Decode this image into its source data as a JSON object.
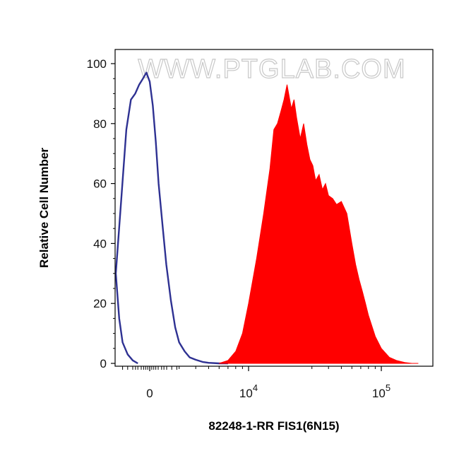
{
  "chart_data": {
    "type": "area",
    "title": "",
    "xlabel": "82248-1-RR FIS1(6N15)",
    "ylabel": "Relative Cell Number",
    "watermark": "WWW.PTGLAB.COM",
    "x_scale": "biexponential",
    "x_ticks": [
      {
        "value": 0,
        "label": "0",
        "sup": ""
      },
      {
        "value": 10000,
        "label": "10",
        "sup": "4"
      },
      {
        "value": 100000,
        "label": "10",
        "sup": "5"
      }
    ],
    "y_ticks": [
      0,
      20,
      40,
      60,
      80,
      100
    ],
    "ylim": [
      0,
      100
    ],
    "series": [
      {
        "style": "outline",
        "color": "#2e3192",
        "x": [
          350,
          500,
          650,
          800,
          900,
          1000,
          1100,
          1200,
          1300,
          1400,
          1500,
          1600,
          1700,
          1800,
          1900,
          2000,
          2100,
          2250,
          2400,
          2600,
          2800,
          3000,
          3300,
          3600,
          4000,
          4500,
          5000,
          6000,
          7000
        ],
        "values": [
          0,
          1,
          3,
          7,
          15,
          30,
          55,
          78,
          88,
          90,
          93,
          95,
          97,
          94,
          86,
          74,
          60,
          46,
          33,
          21,
          12,
          7,
          4,
          2,
          1.2,
          0.5,
          0.2,
          0,
          0
        ]
      },
      {
        "style": "filled",
        "color": "#ff0000",
        "x": [
          6000,
          7000,
          8000,
          9000,
          10000,
          11500,
          13000,
          14500,
          15500,
          16500,
          17500,
          18500,
          19500,
          21000,
          22000,
          23000,
          24500,
          26000,
          27500,
          29000,
          30500,
          32000,
          34000,
          36000,
          38000,
          40000,
          43000,
          46000,
          50000,
          55000,
          60000,
          64000,
          68000,
          72000,
          76000,
          80000,
          90000,
          100000,
          115000,
          130000,
          150000,
          170000,
          190000
        ],
        "values": [
          0,
          1,
          4,
          10,
          20,
          35,
          50,
          65,
          78,
          80,
          84,
          88,
          93,
          85,
          88,
          82,
          75,
          80,
          73,
          68,
          66,
          61,
          63,
          58,
          60,
          56,
          55,
          53,
          54,
          50,
          40,
          33,
          28,
          24,
          20,
          16,
          9,
          5,
          2,
          1,
          0.3,
          0,
          0
        ]
      }
    ]
  }
}
